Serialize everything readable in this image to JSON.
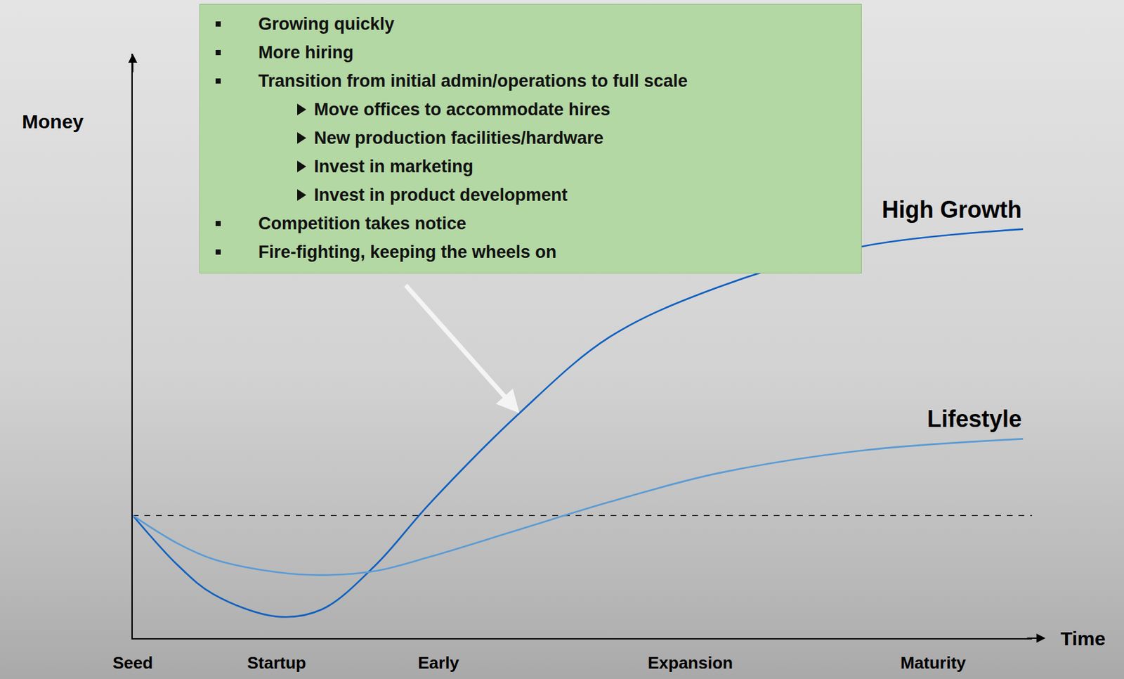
{
  "chart_data": {
    "type": "line",
    "x_title": "Time",
    "y_title": "Money",
    "xlim": [
      0,
      100
    ],
    "ylim": [
      0,
      100
    ],
    "xticks": [
      {
        "value": 0,
        "label": "Seed"
      },
      {
        "value": 16,
        "label": "Startup"
      },
      {
        "value": 34,
        "label": "Early"
      },
      {
        "value": 62,
        "label": "Expansion"
      },
      {
        "value": 89,
        "label": "Maturity"
      }
    ],
    "yticks": [],
    "tick_labels": "x",
    "grid": false,
    "x": [
      0,
      5,
      9,
      16,
      21,
      27,
      33,
      43,
      53,
      65,
      81,
      99
    ],
    "series": [
      {
        "name": "High Growth",
        "color": "#1060c0",
        "line_style": "solid",
        "values": [
          21,
          12.5,
          7.5,
          3.7,
          4.9,
          12.5,
          23,
          38.5,
          51.5,
          60,
          67,
          70
        ]
      },
      {
        "name": "Lifestyle",
        "color": "#5b9bd5",
        "line_style": "solid",
        "values": [
          21,
          16.2,
          13.5,
          11.3,
          10.8,
          11.5,
          13.9,
          18.6,
          23.3,
          28.2,
          32.1,
          34.1
        ]
      }
    ],
    "baseline": {
      "value": 21,
      "line_style": "dashed",
      "color": "#000000"
    },
    "annotation": {
      "x": 43,
      "y": 38.5,
      "color": "#b3d8a3",
      "items": [
        {
          "text": "Growing quickly"
        },
        {
          "text": "More hiring"
        },
        {
          "text": "Transition from initial admin/operations to full scale",
          "items": [
            {
              "text": "Move offices to accommodate hires"
            },
            {
              "text": "New production facilities/hardware"
            },
            {
              "text": "Invest in marketing"
            },
            {
              "text": "Invest in product development"
            }
          ]
        },
        {
          "text": "Competition takes notice"
        },
        {
          "text": "Fire-fighting, keeping the wheels on"
        }
      ]
    }
  }
}
